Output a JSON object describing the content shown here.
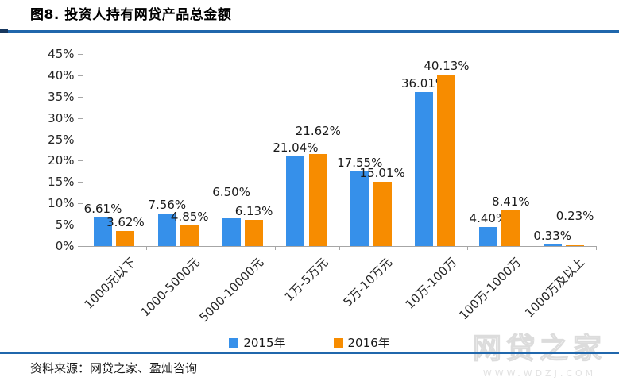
{
  "header": {
    "title": "图8. 投资人持有网贷产品总金额"
  },
  "footer": {
    "source": "资料来源：网贷之家、盈灿咨询"
  },
  "watermark": {
    "main": "网贷之家",
    "sub": "WWW.WDZJ.COM"
  },
  "colors": {
    "accent_line": "#2067AC",
    "accent_cap": "#17375E",
    "axis": "#A6A6A6",
    "label_text": "#1a1a1a",
    "series_2015": "#3690EA",
    "series_2016": "#F78C00"
  },
  "chart_data": {
    "type": "bar",
    "title": "图8. 投资人持有网贷产品总金额",
    "categories": [
      "1000元以下",
      "1000-5000元",
      "5000-10000元",
      "1万-5万元",
      "5万-10万元",
      "10万-100万",
      "100万-1000万",
      "1000万及以上"
    ],
    "series": [
      {
        "name": "2015年",
        "color": "#3690EA",
        "values": [
          6.61,
          7.56,
          6.5,
          21.04,
          17.55,
          36.01,
          4.4,
          0.33
        ],
        "labels": [
          "6.61%",
          "7.56%",
          "6.50%",
          "21.04%",
          "17.55%",
          "36.01%",
          "4.40%",
          "0.33%"
        ],
        "label_dy": [
          0,
          0,
          -22,
          0,
          0,
          0,
          0,
          0
        ]
      },
      {
        "name": "2016年",
        "color": "#F78C00",
        "values": [
          3.62,
          4.85,
          6.13,
          21.62,
          15.01,
          40.13,
          8.41,
          0.23
        ],
        "labels": [
          "3.62%",
          "4.85%",
          "6.13%",
          "21.62%",
          "15.01%",
          "40.13%",
          "8.41%",
          "0.23%"
        ],
        "label_dy": [
          0,
          0,
          0,
          -18,
          0,
          0,
          0,
          -26
        ]
      }
    ],
    "xlabel": "",
    "ylabel": "",
    "ylim": [
      0,
      45
    ],
    "ytick_step": 5,
    "ytick_labels": [
      "0%",
      "5%",
      "10%",
      "15%",
      "20%",
      "25%",
      "30%",
      "35%",
      "40%",
      "45%"
    ],
    "grid": false,
    "value_labels": true,
    "legend_position": "bottom"
  }
}
